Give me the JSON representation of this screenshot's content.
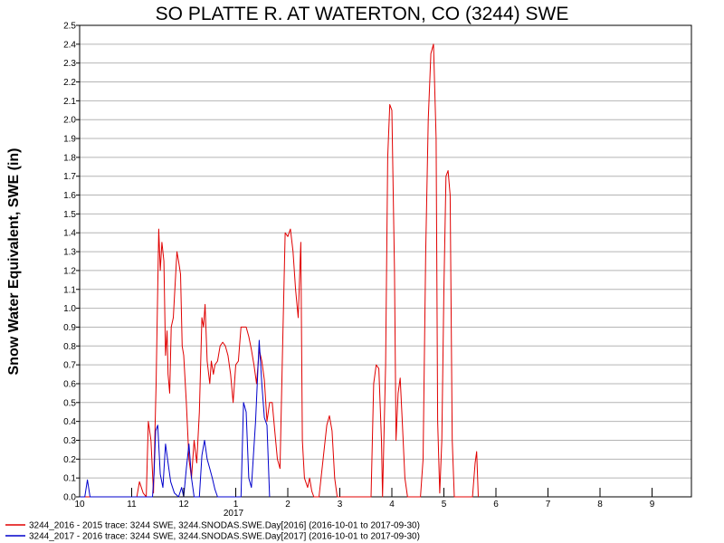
{
  "chart_data": {
    "type": "line",
    "title": "SO PLATTE R. AT WATERTON, CO (3244) SWE",
    "ylabel": "Snow Water Equivalent, SWE (in)",
    "xlabel": "",
    "ylim": [
      0,
      2.5
    ],
    "y_ticks": [
      "0.0",
      "0.1",
      "0.2",
      "0.3",
      "0.4",
      "0.5",
      "0.6",
      "0.7",
      "0.8",
      "0.9",
      "1.0",
      "1.1",
      "1.2",
      "1.3",
      "1.4",
      "1.5",
      "1.6",
      "1.7",
      "1.8",
      "1.9",
      "2.0",
      "2.1",
      "2.2",
      "2.3",
      "2.4",
      "2.5"
    ],
    "xlim": [
      10,
      10.95
    ],
    "x_ticks": [
      {
        "v": 10,
        "label": "10"
      },
      {
        "v": 11,
        "label": "11"
      },
      {
        "v": 12,
        "label": "12"
      },
      {
        "v": 13,
        "label": "1"
      },
      {
        "v": 14,
        "label": "2"
      },
      {
        "v": 15,
        "label": "3"
      },
      {
        "v": 16,
        "label": "4"
      },
      {
        "v": 17,
        "label": "5"
      },
      {
        "v": 18,
        "label": "6"
      },
      {
        "v": 19,
        "label": "7"
      },
      {
        "v": 20,
        "label": "8"
      },
      {
        "v": 21,
        "label": "9"
      }
    ],
    "year_label": "2017",
    "grid": true,
    "legend_position": "bottom",
    "series": [
      {
        "name": "3244_2016 - 2015 trace: 3244 SWE, 3244.SNODAS.SWE.Day[2016] (2016-10-01 to 2017-09-30)",
        "color": "#e00000",
        "points": [
          [
            10,
            0
          ],
          [
            11.1,
            0
          ],
          [
            11.15,
            0.08
          ],
          [
            11.22,
            0.02
          ],
          [
            11.28,
            0
          ],
          [
            11.32,
            0.4
          ],
          [
            11.37,
            0.3
          ],
          [
            11.42,
            0.02
          ],
          [
            11.47,
            0.6
          ],
          [
            11.52,
            1.42
          ],
          [
            11.55,
            1.2
          ],
          [
            11.58,
            1.35
          ],
          [
            11.62,
            1.25
          ],
          [
            11.65,
            0.75
          ],
          [
            11.68,
            0.88
          ],
          [
            11.7,
            0.65
          ],
          [
            11.73,
            0.55
          ],
          [
            11.76,
            0.9
          ],
          [
            11.8,
            0.95
          ],
          [
            11.83,
            1.1
          ],
          [
            11.87,
            1.3
          ],
          [
            11.9,
            1.25
          ],
          [
            11.94,
            1.18
          ],
          [
            11.97,
            0.8
          ],
          [
            12.0,
            0.75
          ],
          [
            12.05,
            0.5
          ],
          [
            12.1,
            0.2
          ],
          [
            12.15,
            0.1
          ],
          [
            12.2,
            0.3
          ],
          [
            12.25,
            0.18
          ],
          [
            12.3,
            0.45
          ],
          [
            12.35,
            0.95
          ],
          [
            12.38,
            0.9
          ],
          [
            12.41,
            1.02
          ],
          [
            12.45,
            0.72
          ],
          [
            12.5,
            0.6
          ],
          [
            12.53,
            0.72
          ],
          [
            12.57,
            0.65
          ],
          [
            12.6,
            0.7
          ],
          [
            12.65,
            0.72
          ],
          [
            12.7,
            0.8
          ],
          [
            12.75,
            0.82
          ],
          [
            12.8,
            0.8
          ],
          [
            12.85,
            0.75
          ],
          [
            12.9,
            0.65
          ],
          [
            12.95,
            0.5
          ],
          [
            13.0,
            0.7
          ],
          [
            13.05,
            0.72
          ],
          [
            13.1,
            0.9
          ],
          [
            13.2,
            0.9
          ],
          [
            13.25,
            0.85
          ],
          [
            13.3,
            0.78
          ],
          [
            13.35,
            0.7
          ],
          [
            13.4,
            0.6
          ],
          [
            13.45,
            0.78
          ],
          [
            13.5,
            0.72
          ],
          [
            13.55,
            0.62
          ],
          [
            13.6,
            0.4
          ],
          [
            13.65,
            0.5
          ],
          [
            13.7,
            0.5
          ],
          [
            13.75,
            0.35
          ],
          [
            13.8,
            0.2
          ],
          [
            13.85,
            0.15
          ],
          [
            13.9,
            0.8
          ],
          [
            13.95,
            1.4
          ],
          [
            14.0,
            1.38
          ],
          [
            14.05,
            1.42
          ],
          [
            14.1,
            1.3
          ],
          [
            14.15,
            1.1
          ],
          [
            14.2,
            0.95
          ],
          [
            14.25,
            1.35
          ],
          [
            14.28,
            0.3
          ],
          [
            14.32,
            0.1
          ],
          [
            14.38,
            0.05
          ],
          [
            14.42,
            0.1
          ],
          [
            14.46,
            0.03
          ],
          [
            14.5,
            0
          ],
          [
            14.6,
            0
          ],
          [
            14.75,
            0.38
          ],
          [
            14.8,
            0.43
          ],
          [
            14.85,
            0.35
          ],
          [
            14.9,
            0.1
          ],
          [
            14.95,
            0
          ],
          [
            15.6,
            0
          ],
          [
            15.65,
            0.6
          ],
          [
            15.7,
            0.7
          ],
          [
            15.75,
            0.68
          ],
          [
            15.8,
            0.3
          ],
          [
            15.82,
            0
          ],
          [
            15.88,
            0.7
          ],
          [
            15.92,
            1.8
          ],
          [
            15.96,
            2.08
          ],
          [
            16.0,
            2.05
          ],
          [
            16.05,
            1.2
          ],
          [
            16.08,
            0.3
          ],
          [
            16.12,
            0.55
          ],
          [
            16.16,
            0.63
          ],
          [
            16.2,
            0.4
          ],
          [
            16.25,
            0.1
          ],
          [
            16.3,
            0
          ],
          [
            16.55,
            0
          ],
          [
            16.6,
            0.2
          ],
          [
            16.65,
            1.3
          ],
          [
            16.7,
            2.0
          ],
          [
            16.75,
            2.35
          ],
          [
            16.8,
            2.4
          ],
          [
            16.85,
            1.9
          ],
          [
            16.88,
            0.4
          ],
          [
            16.92,
            0.02
          ],
          [
            16.96,
            0.3
          ],
          [
            17.0,
            1.1
          ],
          [
            17.04,
            1.7
          ],
          [
            17.08,
            1.73
          ],
          [
            17.12,
            1.6
          ],
          [
            17.16,
            0.3
          ],
          [
            17.2,
            0
          ],
          [
            17.55,
            0
          ],
          [
            17.6,
            0.18
          ],
          [
            17.63,
            0.24
          ],
          [
            17.66,
            0
          ]
        ]
      },
      {
        "name": "3244_2017 - 2016 trace: 3244 SWE, 3244.SNODAS.SWE.Day[2017] (2016-10-01 to 2017-09-30)",
        "color": "#0000cc",
        "points": [
          [
            10,
            0
          ],
          [
            10.1,
            0
          ],
          [
            10.15,
            0.09
          ],
          [
            10.2,
            0
          ],
          [
            11.4,
            0
          ],
          [
            11.43,
            0.12
          ],
          [
            11.46,
            0.35
          ],
          [
            11.5,
            0.38
          ],
          [
            11.55,
            0.12
          ],
          [
            11.6,
            0.05
          ],
          [
            11.65,
            0.28
          ],
          [
            11.7,
            0.18
          ],
          [
            11.75,
            0.08
          ],
          [
            11.82,
            0.02
          ],
          [
            11.9,
            0
          ],
          [
            11.96,
            0.05
          ],
          [
            12.0,
            0
          ],
          [
            12.05,
            0.15
          ],
          [
            12.1,
            0.28
          ],
          [
            12.15,
            0.1
          ],
          [
            12.2,
            0
          ],
          [
            12.3,
            0
          ],
          [
            12.35,
            0.22
          ],
          [
            12.4,
            0.3
          ],
          [
            12.45,
            0.2
          ],
          [
            12.5,
            0.15
          ],
          [
            12.55,
            0.1
          ],
          [
            12.6,
            0.04
          ],
          [
            12.65,
            0
          ],
          [
            13.1,
            0
          ],
          [
            13.15,
            0.5
          ],
          [
            13.2,
            0.45
          ],
          [
            13.25,
            0.1
          ],
          [
            13.3,
            0.05
          ],
          [
            13.38,
            0.4
          ],
          [
            13.45,
            0.83
          ],
          [
            13.5,
            0.6
          ],
          [
            13.55,
            0.42
          ],
          [
            13.6,
            0.38
          ],
          [
            13.65,
            0
          ]
        ]
      }
    ]
  }
}
